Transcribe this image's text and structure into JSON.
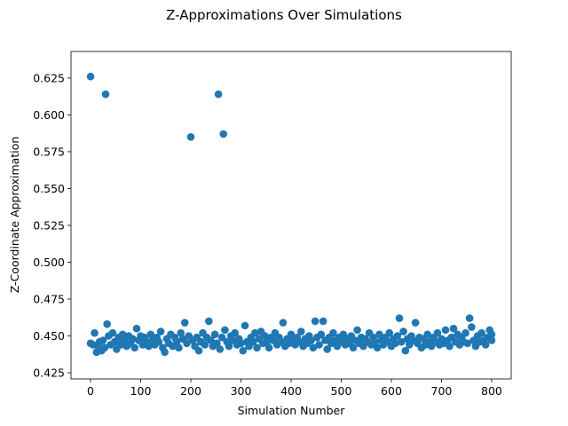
{
  "chart_data": {
    "type": "scatter",
    "title": "Z-Approximations Over Simulations",
    "xlabel": "Simulation Number",
    "ylabel": "Z-Coordinate Approximation",
    "xlim": [
      -39,
      839
    ],
    "ylim": [
      0.4208,
      0.643
    ],
    "xticks": [
      0,
      100,
      200,
      300,
      400,
      500,
      600,
      700,
      800
    ],
    "yticks": [
      0.425,
      0.45,
      0.475,
      0.5,
      0.525,
      0.55,
      0.575,
      0.6,
      0.625
    ],
    "xtick_labels": [
      "0",
      "100",
      "200",
      "300",
      "400",
      "500",
      "600",
      "700",
      "800"
    ],
    "ytick_labels": [
      "0.425",
      "0.450",
      "0.475",
      "0.500",
      "0.525",
      "0.550",
      "0.575",
      "0.600",
      "0.625"
    ],
    "grid": false,
    "marker_color": "#1f77b4",
    "series": [
      {
        "points": [
          [
            0,
            0.626
          ],
          [
            30,
            0.614
          ],
          [
            200,
            0.585
          ],
          [
            255,
            0.614
          ],
          [
            265,
            0.587
          ],
          [
            0,
            0.445
          ],
          [
            5,
            0.444
          ],
          [
            8,
            0.452
          ],
          [
            12,
            0.439
          ],
          [
            15,
            0.443
          ],
          [
            18,
            0.446
          ],
          [
            22,
            0.44
          ],
          [
            25,
            0.447
          ],
          [
            28,
            0.442
          ],
          [
            33,
            0.458
          ],
          [
            36,
            0.45
          ],
          [
            40,
            0.444
          ],
          [
            44,
            0.452
          ],
          [
            48,
            0.446
          ],
          [
            52,
            0.441
          ],
          [
            56,
            0.449
          ],
          [
            60,
            0.444
          ],
          [
            64,
            0.451
          ],
          [
            68,
            0.447
          ],
          [
            72,
            0.443
          ],
          [
            76,
            0.45
          ],
          [
            80,
            0.445
          ],
          [
            84,
            0.448
          ],
          [
            88,
            0.442
          ],
          [
            92,
            0.455
          ],
          [
            96,
            0.447
          ],
          [
            100,
            0.45
          ],
          [
            104,
            0.444
          ],
          [
            108,
            0.449
          ],
          [
            112,
            0.446
          ],
          [
            116,
            0.443
          ],
          [
            120,
            0.451
          ],
          [
            124,
            0.447
          ],
          [
            128,
            0.444
          ],
          [
            132,
            0.449
          ],
          [
            136,
            0.446
          ],
          [
            140,
            0.453
          ],
          [
            144,
            0.442
          ],
          [
            148,
            0.439
          ],
          [
            152,
            0.448
          ],
          [
            156,
            0.445
          ],
          [
            160,
            0.451
          ],
          [
            164,
            0.443
          ],
          [
            168,
            0.449
          ],
          [
            172,
            0.446
          ],
          [
            176,
            0.442
          ],
          [
            180,
            0.452
          ],
          [
            184,
            0.448
          ],
          [
            188,
            0.459
          ],
          [
            192,
            0.445
          ],
          [
            196,
            0.45
          ],
          [
            204,
            0.447
          ],
          [
            208,
            0.443
          ],
          [
            212,
            0.449
          ],
          [
            216,
            0.44
          ],
          [
            220,
            0.446
          ],
          [
            224,
            0.452
          ],
          [
            228,
            0.444
          ],
          [
            232,
            0.449
          ],
          [
            236,
            0.46
          ],
          [
            240,
            0.447
          ],
          [
            244,
            0.443
          ],
          [
            248,
            0.451
          ],
          [
            252,
            0.445
          ],
          [
            258,
            0.441
          ],
          [
            262,
            0.449
          ],
          [
            268,
            0.454
          ],
          [
            272,
            0.446
          ],
          [
            276,
            0.443
          ],
          [
            280,
            0.45
          ],
          [
            284,
            0.447
          ],
          [
            288,
            0.452
          ],
          [
            292,
            0.444
          ],
          [
            296,
            0.448
          ],
          [
            300,
            0.445
          ],
          [
            304,
            0.44
          ],
          [
            308,
            0.457
          ],
          [
            312,
            0.446
          ],
          [
            316,
            0.443
          ],
          [
            320,
            0.449
          ],
          [
            324,
            0.446
          ],
          [
            328,
            0.452
          ],
          [
            332,
            0.442
          ],
          [
            336,
            0.448
          ],
          [
            340,
            0.453
          ],
          [
            344,
            0.445
          ],
          [
            348,
            0.45
          ],
          [
            352,
            0.446
          ],
          [
            356,
            0.442
          ],
          [
            360,
            0.449
          ],
          [
            364,
            0.447
          ],
          [
            368,
            0.452
          ],
          [
            372,
            0.444
          ],
          [
            376,
            0.449
          ],
          [
            380,
            0.446
          ],
          [
            384,
            0.459
          ],
          [
            388,
            0.443
          ],
          [
            392,
            0.448
          ],
          [
            396,
            0.445
          ],
          [
            400,
            0.451
          ],
          [
            404,
            0.447
          ],
          [
            408,
            0.444
          ],
          [
            412,
            0.449
          ],
          [
            416,
            0.446
          ],
          [
            420,
            0.453
          ],
          [
            424,
            0.443
          ],
          [
            428,
            0.448
          ],
          [
            432,
            0.445
          ],
          [
            436,
            0.45
          ],
          [
            440,
            0.447
          ],
          [
            444,
            0.442
          ],
          [
            448,
            0.46
          ],
          [
            452,
            0.449
          ],
          [
            456,
            0.444
          ],
          [
            460,
            0.451
          ],
          [
            464,
            0.46
          ],
          [
            468,
            0.447
          ],
          [
            472,
            0.441
          ],
          [
            476,
            0.449
          ],
          [
            480,
            0.445
          ],
          [
            484,
            0.452
          ],
          [
            488,
            0.447
          ],
          [
            492,
            0.443
          ],
          [
            496,
            0.449
          ],
          [
            500,
            0.446
          ],
          [
            504,
            0.451
          ],
          [
            508,
            0.444
          ],
          [
            512,
            0.448
          ],
          [
            516,
            0.445
          ],
          [
            520,
            0.45
          ],
          [
            524,
            0.442
          ],
          [
            528,
            0.447
          ],
          [
            532,
            0.454
          ],
          [
            536,
            0.445
          ],
          [
            540,
            0.449
          ],
          [
            544,
            0.443
          ],
          [
            548,
            0.448
          ],
          [
            552,
            0.446
          ],
          [
            556,
            0.452
          ],
          [
            560,
            0.444
          ],
          [
            564,
            0.449
          ],
          [
            568,
            0.446
          ],
          [
            572,
            0.442
          ],
          [
            576,
            0.451
          ],
          [
            580,
            0.447
          ],
          [
            584,
            0.444
          ],
          [
            588,
            0.449
          ],
          [
            592,
            0.446
          ],
          [
            596,
            0.452
          ],
          [
            600,
            0.443
          ],
          [
            604,
            0.448
          ],
          [
            608,
            0.445
          ],
          [
            612,
            0.45
          ],
          [
            616,
            0.462
          ],
          [
            620,
            0.446
          ],
          [
            624,
            0.453
          ],
          [
            628,
            0.44
          ],
          [
            632,
            0.448
          ],
          [
            636,
            0.444
          ],
          [
            640,
            0.45
          ],
          [
            644,
            0.447
          ],
          [
            648,
            0.459
          ],
          [
            652,
            0.445
          ],
          [
            656,
            0.449
          ],
          [
            660,
            0.442
          ],
          [
            664,
            0.448
          ],
          [
            668,
            0.444
          ],
          [
            672,
            0.451
          ],
          [
            676,
            0.446
          ],
          [
            680,
            0.443
          ],
          [
            684,
            0.449
          ],
          [
            688,
            0.446
          ],
          [
            692,
            0.452
          ],
          [
            696,
            0.444
          ],
          [
            700,
            0.448
          ],
          [
            704,
            0.445
          ],
          [
            708,
            0.454
          ],
          [
            712,
            0.447
          ],
          [
            716,
            0.443
          ],
          [
            720,
            0.449
          ],
          [
            724,
            0.455
          ],
          [
            728,
            0.446
          ],
          [
            732,
            0.451
          ],
          [
            736,
            0.444
          ],
          [
            740,
            0.449
          ],
          [
            744,
            0.446
          ],
          [
            748,
            0.452
          ],
          [
            752,
            0.445
          ],
          [
            756,
            0.462
          ],
          [
            760,
            0.456
          ],
          [
            764,
            0.447
          ],
          [
            768,
            0.443
          ],
          [
            772,
            0.45
          ],
          [
            776,
            0.446
          ],
          [
            780,
            0.452
          ],
          [
            784,
            0.447
          ],
          [
            788,
            0.444
          ],
          [
            792,
            0.449
          ],
          [
            796,
            0.454
          ],
          [
            800,
            0.447
          ],
          [
            800,
            0.451
          ]
        ]
      }
    ]
  }
}
